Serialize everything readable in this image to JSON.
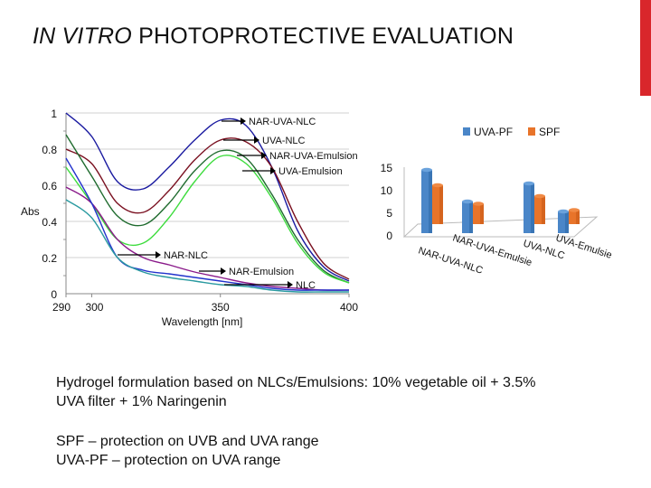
{
  "slide": {
    "title_italic": "IN VITRO",
    "title_rest": "PHOTOPROTECTIVE EVALUATION",
    "accent_color": "#d9262b",
    "body_line1": "Hydrogel formulation based on NLCs/Emulsions: 10% vegetable oil + 3.5%",
    "body_line2": "UVA filter + 1% Naringenin",
    "body_line3": "SPF – protection on UVB and UVA range",
    "body_line4": "UVA-PF – protection on UVA range"
  },
  "chart_data": [
    {
      "type": "line",
      "xlabel": "Wavelength [nm]",
      "ylabel": "Abs",
      "xlim": [
        290,
        400
      ],
      "ylim": [
        0,
        1
      ],
      "xticks": [
        "290",
        "300",
        "350",
        "400"
      ],
      "yticks": [
        "0",
        "0.2",
        "0.4",
        "0.6",
        "0.8",
        "1"
      ],
      "grid": "horizontal",
      "x": [
        290,
        300,
        310,
        320,
        330,
        340,
        350,
        360,
        370,
        380,
        390,
        400
      ],
      "series": [
        {
          "name": "NAR-UVA-NLC",
          "color": "#1a1aa0",
          "values": [
            1.0,
            0.87,
            0.62,
            0.58,
            0.7,
            0.85,
            0.96,
            0.93,
            0.7,
            0.35,
            0.15,
            0.07
          ]
        },
        {
          "name": "UVA-NLC",
          "color": "#7a1020",
          "values": [
            0.8,
            0.72,
            0.5,
            0.45,
            0.57,
            0.74,
            0.85,
            0.84,
            0.7,
            0.4,
            0.17,
            0.08
          ]
        },
        {
          "name": "NAR-UVA-Emulsion",
          "color": "#1f6b2e",
          "values": [
            0.88,
            0.65,
            0.43,
            0.38,
            0.5,
            0.68,
            0.79,
            0.75,
            0.55,
            0.3,
            0.13,
            0.06
          ]
        },
        {
          "name": "UVA-Emulsion",
          "color": "#3ddc3d",
          "values": [
            0.7,
            0.5,
            0.3,
            0.28,
            0.42,
            0.62,
            0.76,
            0.72,
            0.53,
            0.28,
            0.12,
            0.06
          ]
        },
        {
          "name": "NAR-NLC",
          "color": "#8a1a8a",
          "values": [
            0.59,
            0.5,
            0.3,
            0.2,
            0.16,
            0.12,
            0.09,
            0.06,
            0.04,
            0.03,
            0.02,
            0.02
          ]
        },
        {
          "name": "NAR-Emulsion",
          "color": "#2233cc",
          "values": [
            0.75,
            0.5,
            0.2,
            0.13,
            0.11,
            0.09,
            0.07,
            0.05,
            0.03,
            0.02,
            0.02,
            0.02
          ]
        },
        {
          "name": "NLC",
          "color": "#2a9aa0",
          "values": [
            0.52,
            0.42,
            0.2,
            0.12,
            0.09,
            0.07,
            0.05,
            0.04,
            0.02,
            0.01,
            0.01,
            0.01
          ]
        }
      ]
    },
    {
      "type": "bar",
      "categories": [
        "NAR-UVA-NLC",
        "NAR-UVA-Emulsie",
        "UVA-NLC",
        "UVA-Emulsie"
      ],
      "ylim": [
        0,
        15
      ],
      "yticks": [
        "0",
        "5",
        "10",
        "15"
      ],
      "legend": "top",
      "series": [
        {
          "name": "UVA-PF",
          "color": "#4a86c8",
          "values": [
            14,
            7,
            11,
            4.8
          ]
        },
        {
          "name": "SPF",
          "color": "#e8742a",
          "values": [
            8.6,
            4.5,
            6.2,
            3.1
          ]
        }
      ]
    }
  ]
}
